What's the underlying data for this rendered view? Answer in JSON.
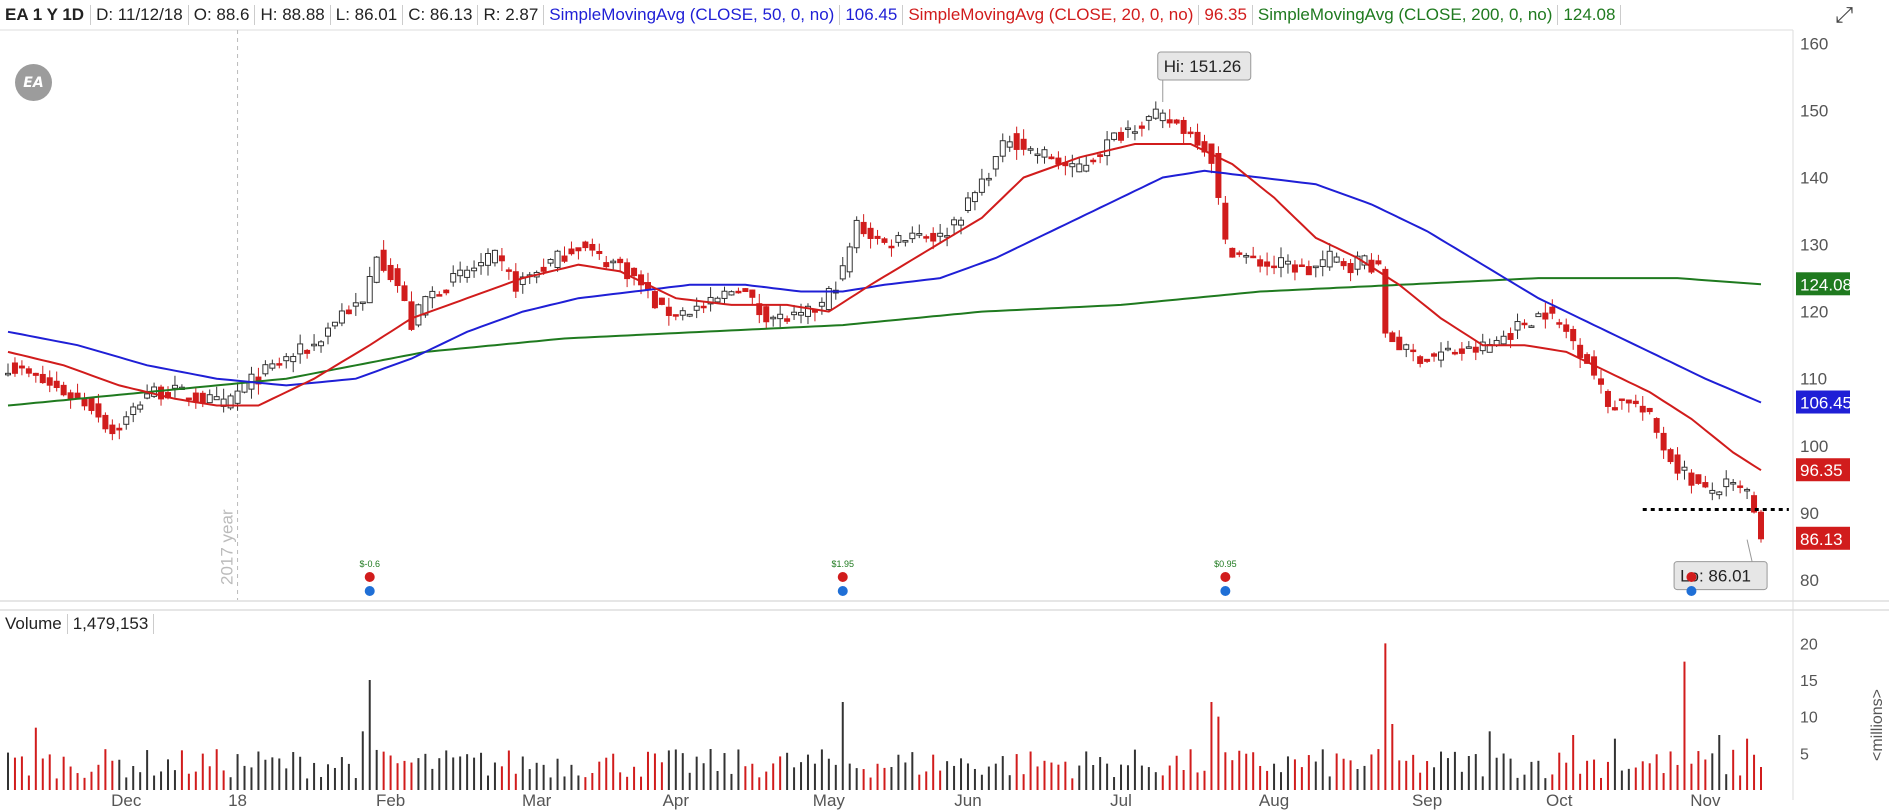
{
  "header": {
    "symbol": "EA 1 Y 1D",
    "date": "D: 11/12/18",
    "open": "O: 88.6",
    "high": "H: 88.88",
    "low": "L: 86.01",
    "close": "C: 86.13",
    "range": "R: 2.87",
    "sma50_label": "SimpleMovingAvg (CLOSE, 50, 0, no)",
    "sma50_value": "106.45",
    "sma20_label": "SimpleMovingAvg (CLOSE, 20, 0, no)",
    "sma20_value": "96.35",
    "sma200_label": "SimpleMovingAvg (CLOSE, 200, 0, no)",
    "sma200_value": "124.08"
  },
  "logo_text": "EA",
  "corner_icon": "expand-icon",
  "volume_panel": {
    "label": "Volume",
    "value": "1,479,153",
    "unit_label": "<millions>"
  },
  "colors": {
    "up": "#333333",
    "down": "#d11c1c",
    "sma50": "#1f1fd6",
    "sma20": "#d11c1c",
    "sma200": "#1f7a1f",
    "badge_close": "#d11c1c",
    "badge_sma50": "#1f1fd6",
    "badge_sma20": "#d11c1c",
    "badge_sma200": "#1f7a1f"
  },
  "chart_data": [
    {
      "type": "candlestick",
      "ylim": [
        77,
        162
      ],
      "yticks": [
        80,
        90,
        100,
        110,
        120,
        130,
        140,
        150,
        160
      ],
      "x_tick_labels": [
        "Dec",
        "18",
        "Feb",
        "Mar",
        "Apr",
        "May",
        "Jun",
        "Jul",
        "Aug",
        "Sep",
        "Oct",
        "Nov"
      ],
      "x_tick_positions": [
        17,
        33,
        55,
        76,
        96,
        118,
        138,
        160,
        182,
        204,
        223,
        244
      ],
      "year_marker": {
        "label": "2017 year",
        "x_index": 33
      },
      "annotations": [
        {
          "text": "Hi: 151.26",
          "x_index": 166,
          "y": 151.26
        },
        {
          "text": "Lo: 86.01",
          "x_index": 250,
          "y": 86.01
        }
      ],
      "support_line": {
        "y": 90.5,
        "x_from": 235,
        "x_to": 256,
        "style": "dotted"
      },
      "earnings_markers": [
        {
          "label": "$-0.6",
          "x_index": 52
        },
        {
          "label": "$1.95",
          "x_index": 120
        },
        {
          "label": "$0.95",
          "x_index": 175
        },
        {
          "label": "",
          "x_index": 242
        }
      ],
      "last_value_badges": [
        {
          "value": "124.08",
          "y": 124.08,
          "color_key": "badge_sma200"
        },
        {
          "value": "106.45",
          "y": 106.45,
          "color_key": "badge_sma50"
        },
        {
          "value": "96.35",
          "y": 96.35,
          "color_key": "badge_sma20"
        },
        {
          "value": "86.13",
          "y": 86.13,
          "color_key": "badge_close"
        }
      ],
      "series_closes_keypoints": [
        [
          0,
          112
        ],
        [
          4,
          110
        ],
        [
          8,
          108
        ],
        [
          12,
          106
        ],
        [
          15,
          102
        ],
        [
          17,
          104
        ],
        [
          20,
          108
        ],
        [
          24,
          108
        ],
        [
          28,
          107
        ],
        [
          31,
          106
        ],
        [
          34,
          109
        ],
        [
          37,
          111
        ],
        [
          40,
          113
        ],
        [
          44,
          115
        ],
        [
          48,
          120
        ],
        [
          51,
          121
        ],
        [
          53,
          129
        ],
        [
          56,
          124
        ],
        [
          58,
          118
        ],
        [
          60,
          122
        ],
        [
          63,
          124
        ],
        [
          66,
          126
        ],
        [
          70,
          128
        ],
        [
          73,
          124
        ],
        [
          76,
          126
        ],
        [
          79,
          128
        ],
        [
          82,
          130
        ],
        [
          85,
          128
        ],
        [
          88,
          127
        ],
        [
          91,
          124
        ],
        [
          94,
          120
        ],
        [
          97,
          120
        ],
        [
          101,
          121
        ],
        [
          105,
          124
        ],
        [
          108,
          120
        ],
        [
          111,
          119
        ],
        [
          114,
          119
        ],
        [
          117,
          121
        ],
        [
          120,
          126
        ],
        [
          122,
          133
        ],
        [
          126,
          130
        ],
        [
          130,
          132
        ],
        [
          134,
          131
        ],
        [
          138,
          136
        ],
        [
          141,
          141
        ],
        [
          144,
          146
        ],
        [
          147,
          144
        ],
        [
          150,
          143
        ],
        [
          153,
          141
        ],
        [
          156,
          143
        ],
        [
          159,
          146
        ],
        [
          162,
          148
        ],
        [
          165,
          149
        ],
        [
          168,
          148
        ],
        [
          171,
          146
        ],
        [
          173,
          143
        ],
        [
          175,
          130
        ],
        [
          178,
          128
        ],
        [
          181,
          127
        ],
        [
          184,
          127
        ],
        [
          187,
          126
        ],
        [
          190,
          128
        ],
        [
          193,
          127
        ],
        [
          195,
          128
        ],
        [
          197,
          126
        ],
        [
          198,
          117
        ],
        [
          201,
          114
        ],
        [
          204,
          113
        ],
        [
          207,
          114
        ],
        [
          210,
          114
        ],
        [
          213,
          115
        ],
        [
          216,
          117
        ],
        [
          219,
          119
        ],
        [
          221,
          120
        ],
        [
          224,
          117
        ],
        [
          227,
          113
        ],
        [
          230,
          106
        ],
        [
          233,
          107
        ],
        [
          236,
          104
        ],
        [
          239,
          98
        ],
        [
          241,
          96
        ],
        [
          244,
          93
        ],
        [
          247,
          94
        ],
        [
          250,
          93
        ],
        [
          252,
          86.13
        ]
      ],
      "sma20_keypoints": [
        [
          0,
          114
        ],
        [
          8,
          112
        ],
        [
          16,
          109
        ],
        [
          24,
          107
        ],
        [
          30,
          106
        ],
        [
          36,
          106
        ],
        [
          44,
          110
        ],
        [
          52,
          115
        ],
        [
          58,
          119
        ],
        [
          66,
          122
        ],
        [
          74,
          125
        ],
        [
          82,
          127
        ],
        [
          88,
          126
        ],
        [
          96,
          122
        ],
        [
          104,
          121
        ],
        [
          112,
          121
        ],
        [
          118,
          120
        ],
        [
          124,
          124
        ],
        [
          132,
          129
        ],
        [
          140,
          134
        ],
        [
          146,
          140
        ],
        [
          154,
          143
        ],
        [
          162,
          145
        ],
        [
          170,
          145
        ],
        [
          176,
          142
        ],
        [
          182,
          137
        ],
        [
          188,
          131
        ],
        [
          194,
          128
        ],
        [
          200,
          124
        ],
        [
          206,
          119
        ],
        [
          212,
          115
        ],
        [
          218,
          115
        ],
        [
          224,
          114
        ],
        [
          230,
          111
        ],
        [
          236,
          108
        ],
        [
          242,
          104
        ],
        [
          248,
          99
        ],
        [
          252,
          96.35
        ]
      ],
      "sma50_keypoints": [
        [
          0,
          117
        ],
        [
          10,
          115
        ],
        [
          20,
          112
        ],
        [
          30,
          110
        ],
        [
          40,
          109
        ],
        [
          50,
          110
        ],
        [
          58,
          113
        ],
        [
          66,
          117
        ],
        [
          74,
          120
        ],
        [
          82,
          122
        ],
        [
          90,
          123
        ],
        [
          98,
          124
        ],
        [
          106,
          124
        ],
        [
          114,
          123
        ],
        [
          120,
          123
        ],
        [
          126,
          124
        ],
        [
          134,
          125
        ],
        [
          142,
          128
        ],
        [
          150,
          132
        ],
        [
          158,
          136
        ],
        [
          166,
          140
        ],
        [
          172,
          141
        ],
        [
          180,
          140
        ],
        [
          188,
          139
        ],
        [
          196,
          136
        ],
        [
          204,
          132
        ],
        [
          212,
          127
        ],
        [
          220,
          122
        ],
        [
          228,
          118
        ],
        [
          236,
          114
        ],
        [
          244,
          110
        ],
        [
          252,
          106.45
        ]
      ],
      "sma200_keypoints": [
        [
          0,
          106
        ],
        [
          20,
          108
        ],
        [
          40,
          110
        ],
        [
          60,
          114
        ],
        [
          80,
          116
        ],
        [
          100,
          117
        ],
        [
          120,
          118
        ],
        [
          140,
          120
        ],
        [
          160,
          121
        ],
        [
          180,
          123
        ],
        [
          200,
          124
        ],
        [
          220,
          125
        ],
        [
          240,
          125
        ],
        [
          252,
          124.08
        ]
      ]
    },
    {
      "type": "bar",
      "name": "Volume",
      "ylim": [
        0,
        21
      ],
      "yticks": [
        5,
        10,
        15,
        20
      ],
      "spikes": [
        {
          "x_index": 4,
          "value": 8.5
        },
        {
          "x_index": 52,
          "value": 15
        },
        {
          "x_index": 51,
          "value": 8
        },
        {
          "x_index": 120,
          "value": 12
        },
        {
          "x_index": 173,
          "value": 12
        },
        {
          "x_index": 174,
          "value": 10
        },
        {
          "x_index": 198,
          "value": 20
        },
        {
          "x_index": 199,
          "value": 9
        },
        {
          "x_index": 241,
          "value": 17.5
        },
        {
          "x_index": 213,
          "value": 8
        },
        {
          "x_index": 225,
          "value": 7.5
        },
        {
          "x_index": 231,
          "value": 7
        },
        {
          "x_index": 246,
          "value": 7.5
        },
        {
          "x_index": 250,
          "value": 7
        }
      ],
      "base_level": 4.5
    }
  ]
}
